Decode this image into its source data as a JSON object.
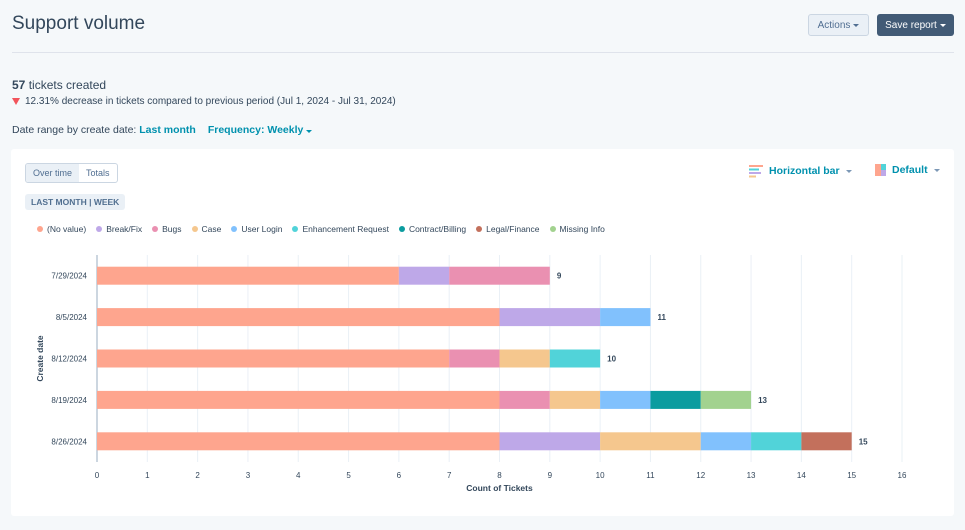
{
  "header": {
    "title": "Support volume",
    "actions_label": "Actions",
    "save_label": "Save report"
  },
  "summary": {
    "count": "57",
    "count_suffix": " tickets created",
    "change": "12.31% decrease in tickets compared to previous period (Jul 1, 2024 - Jul 31, 2024)",
    "range_label": "Date range by create date: ",
    "range_value": "Last month",
    "frequency": "Frequency: Weekly"
  },
  "controls": {
    "tabs": [
      "Over time",
      "Totals"
    ],
    "active_tab": "Over time",
    "tag": "LAST MONTH | WEEK",
    "chart_type": "Horizontal bar",
    "color_scheme": "Default"
  },
  "chart_data": {
    "type": "bar",
    "orientation": "horizontal",
    "stacked": true,
    "categories": [
      "7/29/2024",
      "8/5/2024",
      "8/12/2024",
      "8/19/2024",
      "8/26/2024"
    ],
    "xlabel": "Count of Tickets",
    "ylabel": "Create date",
    "xlim": [
      0,
      16
    ],
    "xticks": [
      0,
      1,
      2,
      3,
      4,
      5,
      6,
      7,
      8,
      9,
      10,
      11,
      12,
      13,
      14,
      15,
      16
    ],
    "grid": true,
    "legend": "top-left",
    "series": [
      {
        "name": "(No value)",
        "color": "#fea58e",
        "values": [
          6,
          8,
          7,
          8,
          8
        ]
      },
      {
        "name": "Break/Fix",
        "color": "#bea8e8",
        "values": [
          1,
          2,
          0,
          0,
          2
        ]
      },
      {
        "name": "Bugs",
        "color": "#ea90b1",
        "values": [
          2,
          0,
          1,
          1,
          0
        ]
      },
      {
        "name": "Case",
        "color": "#f5c78e",
        "values": [
          0,
          0,
          1,
          1,
          2
        ]
      },
      {
        "name": "User Login",
        "color": "#81c1fd",
        "values": [
          0,
          1,
          0,
          1,
          1
        ]
      },
      {
        "name": "Enhancement Request",
        "color": "#51d3d9",
        "values": [
          0,
          0,
          1,
          0,
          1
        ]
      },
      {
        "name": "Contract/Billing",
        "color": "#0b9c9f",
        "values": [
          0,
          0,
          0,
          1,
          0
        ]
      },
      {
        "name": "Legal/Finance",
        "color": "#c3705c",
        "values": [
          0,
          0,
          0,
          0,
          1
        ]
      },
      {
        "name": "Missing Info",
        "color": "#a2d28f",
        "values": [
          0,
          0,
          0,
          1,
          0
        ]
      }
    ],
    "totals": [
      9,
      11,
      10,
      13,
      15
    ]
  }
}
